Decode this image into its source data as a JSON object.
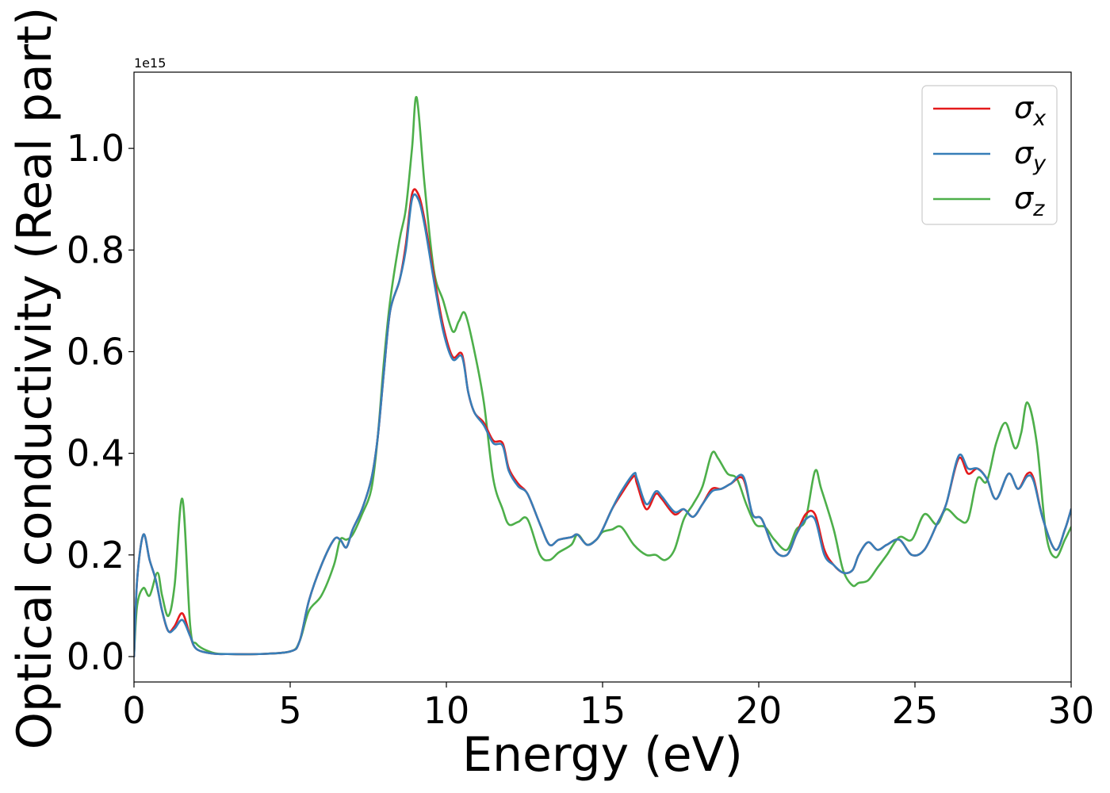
{
  "chart_data": {
    "type": "line",
    "xlabel": "Energy (eV)",
    "ylabel": "Optical conductivity (Real part)",
    "y_offset_label": "1e15",
    "y_scale_factor": 1000000000000000.0,
    "xlim": [
      0,
      30
    ],
    "ylim": [
      -0.05,
      1.15
    ],
    "x_ticks": [
      0,
      5,
      10,
      15,
      20,
      25,
      30
    ],
    "x_tick_labels": [
      "0",
      "5",
      "10",
      "15",
      "20",
      "25",
      "30"
    ],
    "y_ticks": [
      0.0,
      0.2,
      0.4,
      0.6,
      0.8,
      1.0
    ],
    "y_tick_labels": [
      "0.0",
      "0.2",
      "0.4",
      "0.6",
      "0.8",
      "1.0"
    ],
    "grid": false,
    "legend_position": "top-right",
    "colors": {
      "sigma_x": "#e41a1c",
      "sigma_y": "#377eb8",
      "sigma_z": "#4daf4a"
    },
    "series": [
      {
        "name": "σx",
        "legend_base": "σ",
        "legend_sub": "x",
        "color": "#e41a1c",
        "x": [
          0,
          0.1,
          0.3,
          0.5,
          0.7,
          0.9,
          1.1,
          1.3,
          1.55,
          1.8,
          2.0,
          2.5,
          3,
          4,
          5,
          5.3,
          5.6,
          6.0,
          6.4,
          6.6,
          6.8,
          7.0,
          7.3,
          7.6,
          7.8,
          8.0,
          8.2,
          8.5,
          8.7,
          8.9,
          9.1,
          9.3,
          9.6,
          9.9,
          10.2,
          10.5,
          10.7,
          10.9,
          11.2,
          11.5,
          11.8,
          12.0,
          12.3,
          12.6,
          13.0,
          13.3,
          13.6,
          14.0,
          14.2,
          14.5,
          14.8,
          15.0,
          15.3,
          15.6,
          16.0,
          16.1,
          16.4,
          16.7,
          16.9,
          17.3,
          17.6,
          17.9,
          18.2,
          18.5,
          18.8,
          19.1,
          19.5,
          19.8,
          20.1,
          20.5,
          20.9,
          21.2,
          21.5,
          21.8,
          22.1,
          22.4,
          22.7,
          23.0,
          23.2,
          23.5,
          23.8,
          24.1,
          24.5,
          24.9,
          25.3,
          25.7,
          26.0,
          26.4,
          26.7,
          27.0,
          27.3,
          27.6,
          28.0,
          28.3,
          28.6,
          28.8,
          29.1,
          29.5,
          29.8,
          30.0
        ],
        "y": [
          0.0,
          0.15,
          0.24,
          0.19,
          0.15,
          0.09,
          0.05,
          0.06,
          0.085,
          0.04,
          0.015,
          0.006,
          0.005,
          0.005,
          0.01,
          0.03,
          0.11,
          0.18,
          0.23,
          0.23,
          0.215,
          0.25,
          0.29,
          0.35,
          0.43,
          0.56,
          0.68,
          0.74,
          0.81,
          0.91,
          0.91,
          0.86,
          0.75,
          0.65,
          0.59,
          0.595,
          0.52,
          0.48,
          0.46,
          0.425,
          0.42,
          0.37,
          0.34,
          0.32,
          0.26,
          0.22,
          0.23,
          0.235,
          0.24,
          0.22,
          0.23,
          0.25,
          0.29,
          0.32,
          0.355,
          0.34,
          0.29,
          0.32,
          0.31,
          0.28,
          0.29,
          0.275,
          0.3,
          0.33,
          0.33,
          0.34,
          0.35,
          0.28,
          0.27,
          0.21,
          0.2,
          0.24,
          0.28,
          0.28,
          0.21,
          0.18,
          0.165,
          0.17,
          0.2,
          0.225,
          0.21,
          0.22,
          0.23,
          0.2,
          0.21,
          0.26,
          0.3,
          0.39,
          0.36,
          0.37,
          0.35,
          0.31,
          0.36,
          0.33,
          0.36,
          0.35,
          0.27,
          0.21,
          0.25,
          0.29
        ]
      },
      {
        "name": "σy",
        "legend_base": "σ",
        "legend_sub": "y",
        "color": "#377eb8",
        "x": [
          0,
          0.1,
          0.3,
          0.5,
          0.7,
          0.9,
          1.1,
          1.3,
          1.55,
          1.8,
          2.0,
          2.5,
          3,
          4,
          5,
          5.3,
          5.6,
          6.0,
          6.4,
          6.6,
          6.8,
          7.0,
          7.3,
          7.6,
          7.8,
          8.0,
          8.2,
          8.5,
          8.7,
          8.9,
          9.1,
          9.3,
          9.6,
          9.9,
          10.2,
          10.5,
          10.7,
          10.9,
          11.2,
          11.5,
          11.8,
          12.0,
          12.3,
          12.6,
          13.0,
          13.3,
          13.6,
          14.0,
          14.2,
          14.5,
          14.8,
          15.0,
          15.3,
          15.6,
          16.0,
          16.1,
          16.4,
          16.7,
          16.9,
          17.3,
          17.6,
          17.9,
          18.2,
          18.5,
          18.8,
          19.1,
          19.5,
          19.8,
          20.1,
          20.5,
          20.9,
          21.2,
          21.5,
          21.8,
          22.1,
          22.4,
          22.7,
          23.0,
          23.2,
          23.5,
          23.8,
          24.1,
          24.5,
          24.9,
          25.3,
          25.7,
          26.0,
          26.4,
          26.7,
          27.0,
          27.3,
          27.6,
          28.0,
          28.3,
          28.6,
          28.8,
          29.1,
          29.5,
          29.8,
          30.0
        ],
        "y": [
          0.0,
          0.15,
          0.24,
          0.19,
          0.15,
          0.09,
          0.05,
          0.055,
          0.072,
          0.04,
          0.015,
          0.006,
          0.005,
          0.005,
          0.01,
          0.03,
          0.11,
          0.18,
          0.23,
          0.23,
          0.215,
          0.25,
          0.29,
          0.35,
          0.43,
          0.56,
          0.68,
          0.74,
          0.8,
          0.9,
          0.9,
          0.85,
          0.74,
          0.64,
          0.585,
          0.59,
          0.52,
          0.48,
          0.455,
          0.42,
          0.415,
          0.365,
          0.335,
          0.32,
          0.26,
          0.22,
          0.23,
          0.235,
          0.24,
          0.22,
          0.23,
          0.25,
          0.29,
          0.325,
          0.36,
          0.35,
          0.3,
          0.325,
          0.315,
          0.285,
          0.29,
          0.275,
          0.3,
          0.325,
          0.33,
          0.34,
          0.355,
          0.28,
          0.27,
          0.21,
          0.2,
          0.24,
          0.27,
          0.27,
          0.2,
          0.18,
          0.165,
          0.17,
          0.2,
          0.225,
          0.21,
          0.22,
          0.23,
          0.2,
          0.21,
          0.26,
          0.3,
          0.395,
          0.37,
          0.37,
          0.35,
          0.31,
          0.36,
          0.33,
          0.355,
          0.345,
          0.27,
          0.21,
          0.25,
          0.29
        ]
      },
      {
        "name": "σz",
        "legend_base": "σ",
        "legend_sub": "z",
        "color": "#4daf4a",
        "x": [
          0,
          0.1,
          0.3,
          0.5,
          0.75,
          0.9,
          1.1,
          1.3,
          1.55,
          1.8,
          2.0,
          2.5,
          3,
          4,
          5,
          5.3,
          5.6,
          6.0,
          6.4,
          6.6,
          6.8,
          7.0,
          7.3,
          7.6,
          7.8,
          8.0,
          8.2,
          8.5,
          8.7,
          8.9,
          9.05,
          9.3,
          9.6,
          9.9,
          10.2,
          10.4,
          10.6,
          10.9,
          11.2,
          11.5,
          11.8,
          12.0,
          12.3,
          12.6,
          13.0,
          13.3,
          13.6,
          14.0,
          14.2,
          14.5,
          14.8,
          15.0,
          15.3,
          15.6,
          16.0,
          16.4,
          16.7,
          17.0,
          17.3,
          17.6,
          17.9,
          18.2,
          18.5,
          18.7,
          19.0,
          19.3,
          19.6,
          19.9,
          20.2,
          20.5,
          20.9,
          21.2,
          21.5,
          21.8,
          22.0,
          22.4,
          22.7,
          23.0,
          23.2,
          23.5,
          23.8,
          24.1,
          24.5,
          24.9,
          25.3,
          25.7,
          26.0,
          26.4,
          26.7,
          27.0,
          27.3,
          27.6,
          27.9,
          28.2,
          28.4,
          28.6,
          28.9,
          29.2,
          29.5,
          29.8,
          30.0
        ],
        "y": [
          0.0,
          0.1,
          0.135,
          0.12,
          0.165,
          0.12,
          0.08,
          0.14,
          0.31,
          0.06,
          0.025,
          0.008,
          0.005,
          0.005,
          0.01,
          0.03,
          0.09,
          0.12,
          0.18,
          0.23,
          0.23,
          0.24,
          0.28,
          0.33,
          0.43,
          0.58,
          0.7,
          0.82,
          0.88,
          1.0,
          1.1,
          0.93,
          0.76,
          0.7,
          0.64,
          0.66,
          0.675,
          0.6,
          0.5,
          0.35,
          0.29,
          0.26,
          0.265,
          0.27,
          0.2,
          0.19,
          0.205,
          0.22,
          0.24,
          0.22,
          0.23,
          0.245,
          0.25,
          0.255,
          0.22,
          0.2,
          0.2,
          0.19,
          0.21,
          0.27,
          0.3,
          0.335,
          0.4,
          0.39,
          0.36,
          0.35,
          0.3,
          0.26,
          0.255,
          0.23,
          0.21,
          0.25,
          0.27,
          0.365,
          0.33,
          0.25,
          0.17,
          0.14,
          0.145,
          0.15,
          0.175,
          0.2,
          0.235,
          0.23,
          0.28,
          0.26,
          0.29,
          0.27,
          0.27,
          0.35,
          0.345,
          0.42,
          0.46,
          0.41,
          0.44,
          0.5,
          0.42,
          0.24,
          0.195,
          0.23,
          0.255
        ]
      }
    ]
  }
}
